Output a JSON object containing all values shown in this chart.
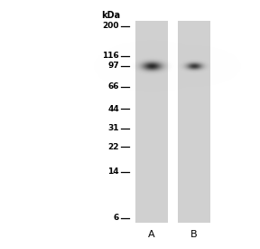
{
  "fig_bg": "#ffffff",
  "gel_bg": "#e0e0e0",
  "lane_color": "#d0d0d0",
  "band_color_dark": "#444444",
  "band_color_mid": "#777777",
  "marker_labels": [
    "200",
    "116",
    "97",
    "66",
    "44",
    "31",
    "22",
    "14",
    "6"
  ],
  "marker_positions": [
    200,
    116,
    97,
    66,
    44,
    31,
    22,
    14,
    6
  ],
  "kda_label": "kDa",
  "lane_labels": [
    "A",
    "B"
  ],
  "band_kda": 97,
  "log_min": 0.699,
  "log_max": 2.4,
  "label_fontsize": 6.5,
  "lane_label_fontsize": 8
}
